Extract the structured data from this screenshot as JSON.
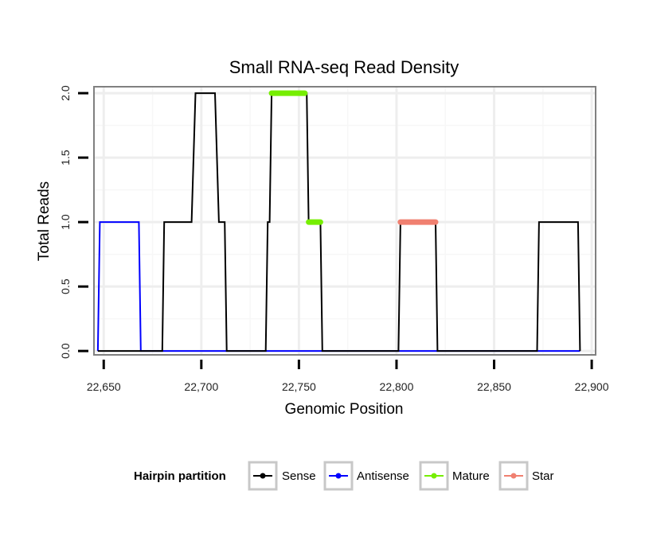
{
  "chart_data": {
    "type": "line",
    "title": "Small RNA-seq Read Density",
    "xlabel": "Genomic Position",
    "ylabel": "Total Reads",
    "xlim": [
      22645,
      22902
    ],
    "ylim": [
      -0.03,
      2.05
    ],
    "xticks": [
      22650,
      22700,
      22750,
      22800,
      22850,
      22900
    ],
    "xtick_labels": [
      "22,650",
      "22,700",
      "22,750",
      "22,800",
      "22,850",
      "22,900"
    ],
    "yticks": [
      0.0,
      0.5,
      1.0,
      1.5,
      2.0
    ],
    "ytick_labels": [
      "0.0",
      "0.5",
      "1.0",
      "1.5",
      "2.0"
    ],
    "grid": true,
    "legend": {
      "title": "Hairpin partition",
      "position": "bottom",
      "entries": [
        "Sense",
        "Antisense",
        "Mature",
        "Star"
      ]
    },
    "series": [
      {
        "name": "Sense",
        "color": "#000000",
        "style": "line",
        "x": [
          22647,
          22680,
          22681,
          22695,
          22697,
          22707,
          22709,
          22712,
          22713,
          22733,
          22734,
          22735,
          22736,
          22754,
          22755,
          22761,
          22762,
          22801,
          22802,
          22820,
          22821,
          22872,
          22873,
          22893,
          22894
        ],
        "y": [
          0,
          0,
          1,
          1,
          2,
          2,
          1,
          1,
          0,
          0,
          1,
          1,
          2,
          2,
          1,
          1,
          0,
          0,
          1,
          1,
          0,
          0,
          1,
          1,
          0
        ]
      },
      {
        "name": "Antisense",
        "color": "#0000ff",
        "style": "line",
        "x": [
          22647,
          22648,
          22668,
          22669,
          22894
        ],
        "y": [
          0,
          1,
          1,
          0,
          0
        ]
      },
      {
        "name": "Mature",
        "color": "#76ee00",
        "style": "segment",
        "segments": [
          {
            "x": [
              22736,
              22753
            ],
            "y": 2
          },
          {
            "x": [
              22755,
              22761
            ],
            "y": 1
          }
        ]
      },
      {
        "name": "Star",
        "color": "#f08070",
        "style": "segment",
        "segments": [
          {
            "x": [
              22802,
              22820
            ],
            "y": 1
          }
        ]
      }
    ]
  }
}
